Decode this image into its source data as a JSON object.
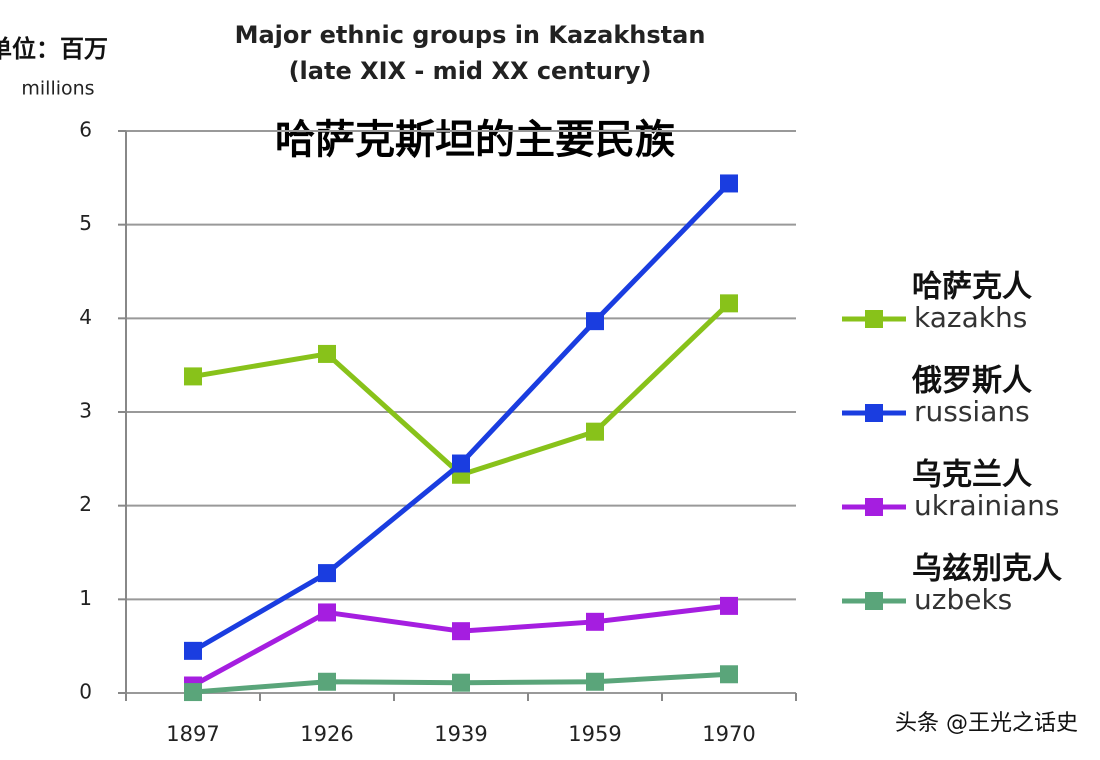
{
  "chart_data": {
    "type": "line",
    "title": "Major ethnic groups in Kazakhstan",
    "subtitle": "(late XIX - mid XX century)",
    "title_zh": "哈萨克斯坦的主要民族",
    "unit_label": "单位：百万",
    "y_label": "millions",
    "watermark": "头条 @王光之话史",
    "categories": [
      "1897",
      "1926",
      "1939",
      "1959",
      "1970"
    ],
    "series": [
      {
        "name": "kazakhs",
        "name_zh": "哈萨克人",
        "color": "#88c21a",
        "values": [
          3.38,
          3.62,
          2.33,
          2.79,
          4.16
        ]
      },
      {
        "name": "russians",
        "name_zh": "俄罗斯人",
        "color": "#1a3de0",
        "values": [
          0.45,
          1.28,
          2.45,
          3.97,
          5.44
        ]
      },
      {
        "name": "ukrainians",
        "name_zh": "乌克兰人",
        "color": "#a51ee0",
        "values": [
          0.08,
          0.86,
          0.66,
          0.76,
          0.93
        ]
      },
      {
        "name": "uzbeks",
        "name_zh": "乌兹别克人",
        "color": "#5aa57a",
        "values": [
          0.01,
          0.12,
          0.11,
          0.12,
          0.2
        ]
      }
    ],
    "ylim": [
      0,
      6
    ],
    "yticks": [
      0,
      1,
      2,
      3,
      4,
      5,
      6
    ],
    "grid": true
  }
}
